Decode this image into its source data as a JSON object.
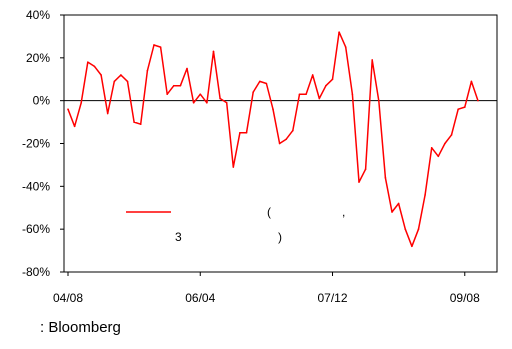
{
  "chart_data": {
    "type": "line",
    "title": "",
    "xlabel": "",
    "ylabel": "",
    "ylim": [
      -80,
      40
    ],
    "y_ticks": [
      "40%",
      "20%",
      "0%",
      "-20%",
      "-40%",
      "-60%",
      "-80%"
    ],
    "y_tick_values": [
      40,
      20,
      0,
      -20,
      -40,
      -60,
      -80
    ],
    "x_ticks": [
      "04/08",
      "06/04",
      "07/12",
      "09/08"
    ],
    "x_tick_index": [
      0,
      20,
      40,
      60
    ],
    "grid": false,
    "zero_line": true,
    "series": [
      {
        "color": "#ff0000",
        "values": [
          -4,
          -12,
          -1,
          18,
          16,
          12,
          -6,
          9,
          12,
          9,
          -10,
          -11,
          14,
          26,
          25,
          3,
          7,
          7,
          15,
          -1,
          3,
          -1,
          23,
          1,
          -1,
          -31,
          -15,
          -15,
          4,
          9,
          8,
          -4,
          -20,
          -18,
          -14,
          3,
          3,
          12,
          1,
          7,
          10,
          32,
          25,
          3,
          -38,
          -32,
          19,
          0,
          -36,
          -52,
          -48,
          -60,
          -68,
          -60,
          -44,
          -22,
          -26,
          -20,
          -16,
          -4,
          -3,
          9,
          0
        ]
      }
    ],
    "legend": {
      "position": "center-left",
      "fragments": [
        "(",
        ",",
        "3",
        ")"
      ]
    }
  },
  "source_label": ": Bloomberg"
}
